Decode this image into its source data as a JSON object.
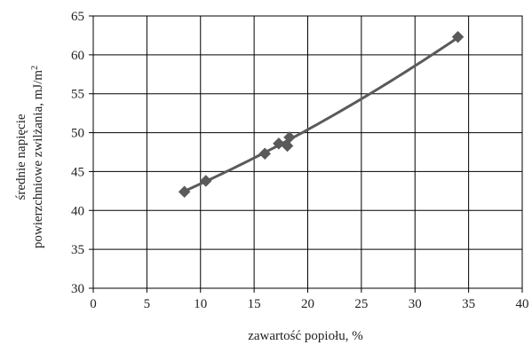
{
  "chart_data": {
    "type": "scatter",
    "title": "",
    "xlabel": "zawartość popiołu, %",
    "ylabel_line1": "średnie napięcie",
    "ylabel_line2": "powierzchniowe zwilżania, mJ/m",
    "ylabel_sup": "2",
    "xlim": [
      0,
      40
    ],
    "ylim": [
      30,
      65
    ],
    "xticks": [
      0,
      5,
      10,
      15,
      20,
      25,
      30,
      35,
      40
    ],
    "yticks": [
      30,
      35,
      40,
      45,
      50,
      55,
      60,
      65
    ],
    "xtick_labels": [
      "0",
      "5",
      "10",
      "15",
      "20",
      "25",
      "30",
      "35",
      "40"
    ],
    "ytick_labels": [
      "30",
      "35",
      "40",
      "45",
      "50",
      "55",
      "60",
      "65"
    ],
    "grid": true,
    "legend": "none",
    "marker": "diamond",
    "marker_color": "#5a5a5a",
    "trend_color": "#5a5a5a",
    "grid_color": "#000000",
    "series": [
      {
        "points": [
          {
            "x": 8.5,
            "y": 42.4
          },
          {
            "x": 10.5,
            "y": 43.8
          },
          {
            "x": 16.0,
            "y": 47.3
          },
          {
            "x": 17.3,
            "y": 48.6
          },
          {
            "x": 18.1,
            "y": 48.3
          },
          {
            "x": 18.3,
            "y": 49.4
          },
          {
            "x": 34.0,
            "y": 62.3
          }
        ]
      }
    ],
    "trend": {
      "type": "polynomial",
      "order": 2,
      "points": [
        {
          "x": 8.5,
          "y": 42.4
        },
        {
          "x": 12.0,
          "y": 44.8
        },
        {
          "x": 16.0,
          "y": 47.5
        },
        {
          "x": 20.0,
          "y": 50.4
        },
        {
          "x": 24.0,
          "y": 53.5
        },
        {
          "x": 28.0,
          "y": 56.8
        },
        {
          "x": 31.0,
          "y": 59.4
        },
        {
          "x": 34.0,
          "y": 62.3
        }
      ]
    }
  }
}
